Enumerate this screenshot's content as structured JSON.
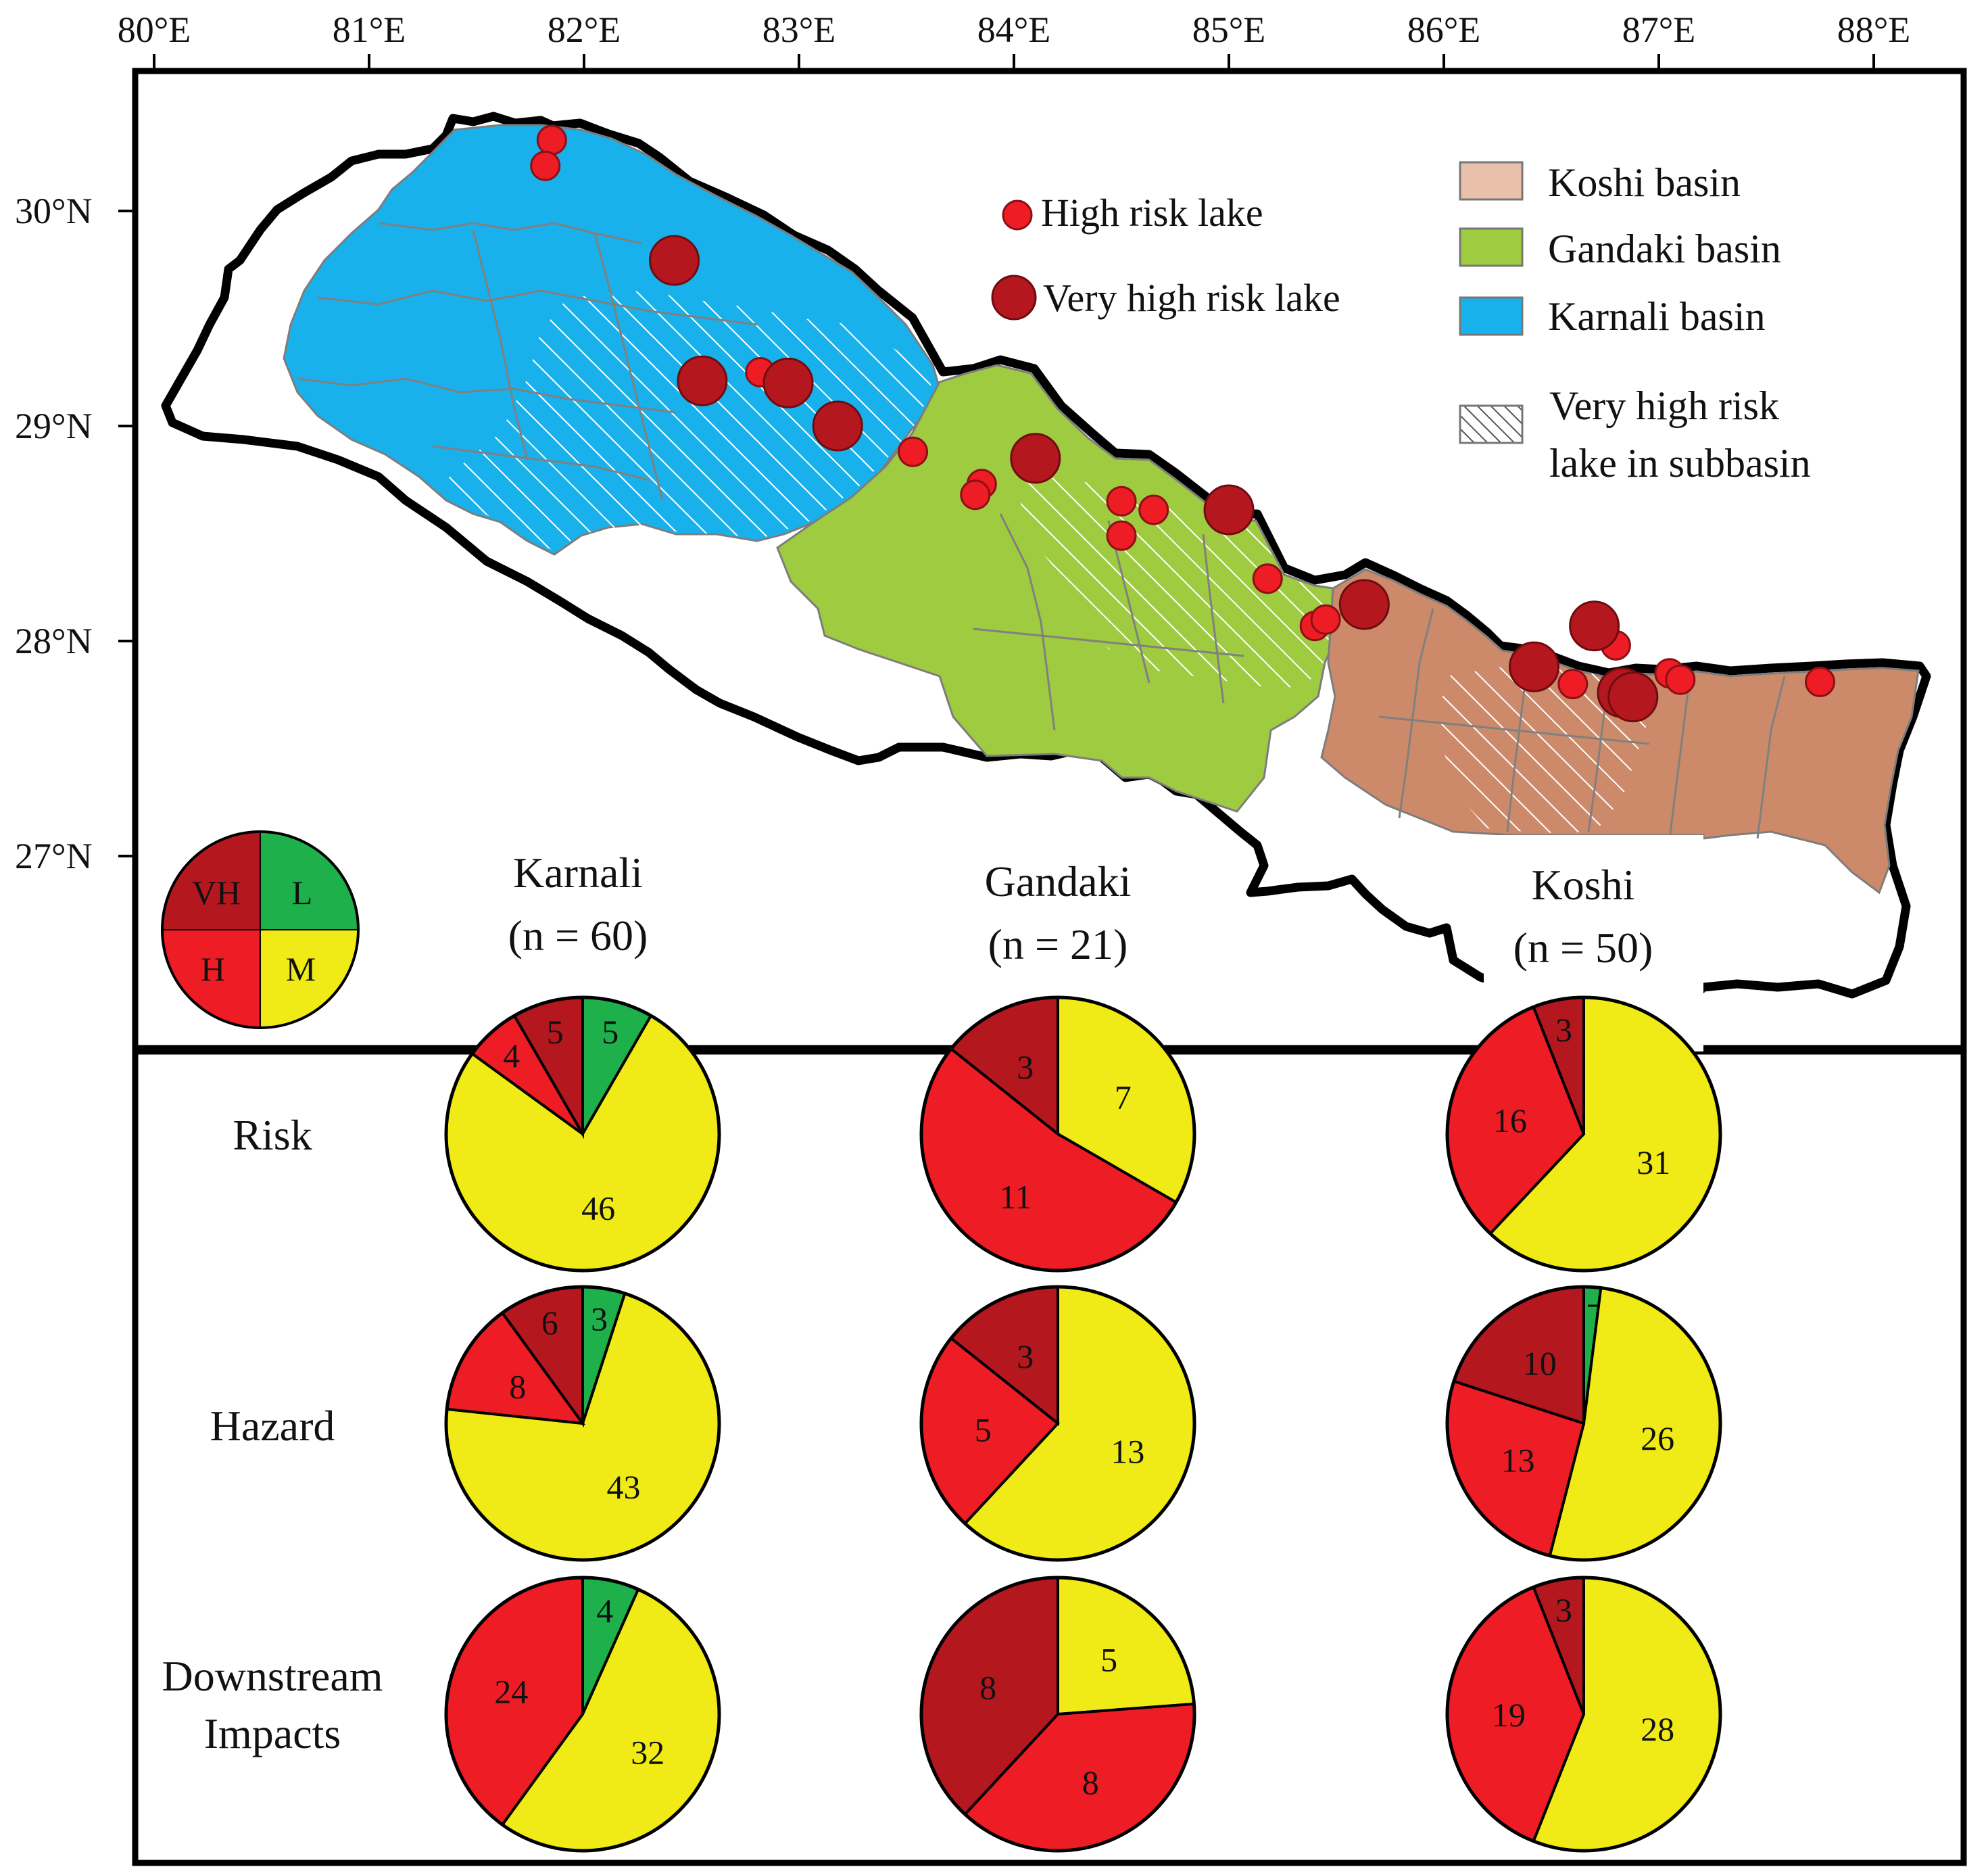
{
  "map": {
    "lon_labels": [
      "80°E",
      "81°E",
      "82°E",
      "83°E",
      "84°E",
      "85°E",
      "86°E",
      "87°E",
      "88°E"
    ],
    "lat_labels": [
      "30°N",
      "29°N",
      "28°N",
      "27°N"
    ],
    "lake_legend": {
      "high": "High risk lake",
      "very_high": "Very high risk lake"
    },
    "basin_legend": {
      "koshi": "Koshi basin",
      "gandaki": "Gandaki basin",
      "karnali": "Karnali basin",
      "hatch_line1": "Very high risk",
      "hatch_line2": "lake in subbasin"
    },
    "colors": {
      "karnali": "#19b1ec",
      "gandaki": "#9ecb3f",
      "koshi": "#cc8a6a",
      "koshi_legend": "#e9c0aa",
      "high_lake": "#ee1c24",
      "very_high_lake": "#b5171f",
      "border": "#000000"
    },
    "high_risk_lakes": [
      {
        "lon": 81.85,
        "lat": 30.33
      },
      {
        "lon": 81.82,
        "lat": 30.21
      },
      {
        "lon": 82.82,
        "lat": 29.25
      },
      {
        "lon": 83.53,
        "lat": 28.88
      },
      {
        "lon": 83.85,
        "lat": 28.73
      },
      {
        "lon": 83.82,
        "lat": 28.68
      },
      {
        "lon": 84.5,
        "lat": 28.65
      },
      {
        "lon": 84.65,
        "lat": 28.61
      },
      {
        "lon": 84.5,
        "lat": 28.49
      },
      {
        "lon": 85.18,
        "lat": 28.29
      },
      {
        "lon": 85.4,
        "lat": 28.07
      },
      {
        "lon": 85.45,
        "lat": 28.1
      },
      {
        "lon": 86.6,
        "lat": 27.8
      },
      {
        "lon": 86.8,
        "lat": 27.98
      },
      {
        "lon": 87.05,
        "lat": 27.85
      },
      {
        "lon": 87.1,
        "lat": 27.82
      },
      {
        "lon": 87.75,
        "lat": 27.81
      }
    ],
    "very_high_risk_lakes": [
      {
        "lon": 82.42,
        "lat": 29.77
      },
      {
        "lon": 82.55,
        "lat": 29.21
      },
      {
        "lon": 82.95,
        "lat": 29.2
      },
      {
        "lon": 83.18,
        "lat": 29.0
      },
      {
        "lon": 84.1,
        "lat": 28.85
      },
      {
        "lon": 85.0,
        "lat": 28.61
      },
      {
        "lon": 85.63,
        "lat": 28.17
      },
      {
        "lon": 86.42,
        "lat": 27.88
      },
      {
        "lon": 86.7,
        "lat": 28.07
      },
      {
        "lon": 86.83,
        "lat": 27.76
      },
      {
        "lon": 86.88,
        "lat": 27.74
      }
    ]
  },
  "key": {
    "vh": "VH",
    "l": "L",
    "h": "H",
    "m": "M"
  },
  "row_labels": {
    "risk": "Risk",
    "hazard": "Hazard",
    "downstream_line1": "Downstream",
    "downstream_line2": "Impacts"
  },
  "basin_columns": [
    {
      "name": "Karnali",
      "n": "(n = 60)"
    },
    {
      "name": "Gandaki",
      "n": "(n = 21)"
    },
    {
      "name": "Koshi",
      "n": "(n = 50)"
    }
  ],
  "chart_data": {
    "type": "pie",
    "categories": [
      "L",
      "M",
      "H",
      "VH"
    ],
    "colors": {
      "L": "#1db04b",
      "M": "#f0ea16",
      "H": "#ee1c24",
      "VH": "#b5171f"
    },
    "pies": [
      {
        "basin": "Karnali",
        "row": "Risk",
        "values": {
          "L": 5,
          "M": 46,
          "H": 4,
          "VH": 5
        }
      },
      {
        "basin": "Gandaki",
        "row": "Risk",
        "values": {
          "L": 0,
          "M": 7,
          "H": 11,
          "VH": 3
        }
      },
      {
        "basin": "Koshi",
        "row": "Risk",
        "values": {
          "L": 0,
          "M": 31,
          "H": 16,
          "VH": 3
        }
      },
      {
        "basin": "Karnali",
        "row": "Hazard",
        "values": {
          "L": 3,
          "M": 43,
          "H": 8,
          "VH": 6
        }
      },
      {
        "basin": "Gandaki",
        "row": "Hazard",
        "values": {
          "L": 0,
          "M": 13,
          "H": 5,
          "VH": 3
        }
      },
      {
        "basin": "Koshi",
        "row": "Hazard",
        "values": {
          "L": 1,
          "M": 26,
          "H": 13,
          "VH": 10
        }
      },
      {
        "basin": "Karnali",
        "row": "Downstream Impacts",
        "values": {
          "L": 4,
          "M": 32,
          "H": 24,
          "VH": 0
        }
      },
      {
        "basin": "Gandaki",
        "row": "Downstream Impacts",
        "values": {
          "L": 0,
          "M": 5,
          "H": 8,
          "VH": 8
        }
      },
      {
        "basin": "Koshi",
        "row": "Downstream Impacts",
        "values": {
          "L": 0,
          "M": 28,
          "H": 19,
          "VH": 3
        }
      }
    ]
  }
}
